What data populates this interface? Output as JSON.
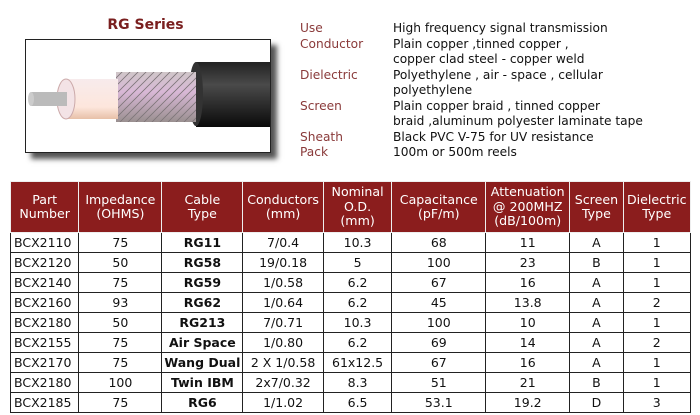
{
  "title": "RG Series",
  "specs": [
    {
      "label": "Use",
      "lines": [
        "High frequency signal transmission"
      ]
    },
    {
      "label": "Conductor",
      "lines": [
        "Plain copper ,tinned copper ,",
        "copper clad steel - copper weld"
      ]
    },
    {
      "label": "Dielectric",
      "lines": [
        "Polyethylene , air - space , cellular",
        "polyethylene"
      ]
    },
    {
      "label": "Screen",
      "lines": [
        "Plain copper braid , tinned copper",
        "braid ,aluminum polyester laminate tape"
      ]
    },
    {
      "label": "Sheath",
      "lines": [
        "Black PVC V-75 for UV resistance"
      ]
    },
    {
      "label": "Pack",
      "lines": [
        "100m or 500m reels"
      ]
    }
  ],
  "table": {
    "headers": [
      [
        "Part",
        "Number"
      ],
      [
        "Impedance",
        "(OHMS)"
      ],
      [
        "Cable",
        "Type"
      ],
      [
        "Conductors",
        "(mm)"
      ],
      [
        "Nominal",
        "O.D.",
        "(mm)"
      ],
      [
        "Capacitance",
        "(pF/m)"
      ],
      [
        "Attenuation",
        "@ 200MHZ",
        "(dB/100m)"
      ],
      [
        "Screen",
        "Type"
      ],
      [
        "Dielectric",
        "Type"
      ]
    ],
    "rows": [
      [
        "BCX2110",
        "75",
        "RG11",
        "7/0.4",
        "10.3",
        "68",
        "11",
        "A",
        "1"
      ],
      [
        "BCX2120",
        "50",
        "RG58",
        "19/0.18",
        "5",
        "100",
        "23",
        "B",
        "1"
      ],
      [
        "BCX2140",
        "75",
        "RG59",
        "1/0.58",
        "6.2",
        "67",
        "16",
        "A",
        "1"
      ],
      [
        "BCX2160",
        "93",
        "RG62",
        "1/0.64",
        "6.2",
        "45",
        "13.8",
        "A",
        "2"
      ],
      [
        "BCX2180",
        "50",
        "RG213",
        "7/0.71",
        "10.3",
        "100",
        "10",
        "A",
        "1"
      ],
      [
        "BCX2155",
        "75",
        "Air Space",
        "1/0.80",
        "6.2",
        "69",
        "14",
        "A",
        "2"
      ],
      [
        "BCX2170",
        "75",
        "Wang Dual",
        "2 X 1/0.58",
        "61x12.5",
        "67",
        "16",
        "A",
        "1"
      ],
      [
        "BCX2180",
        "100",
        "Twin IBM",
        "2x7/0.32",
        "8.3",
        "51",
        "21",
        "B",
        "1"
      ],
      [
        "BCX2185",
        "75",
        "RG6",
        "1/1.02",
        "6.5",
        "53.1",
        "19.2",
        "D",
        "3"
      ]
    ]
  },
  "colors": {
    "header_bg": "#8b1d1d",
    "title": "#7a1f1f",
    "label": "#8a3a3a"
  }
}
